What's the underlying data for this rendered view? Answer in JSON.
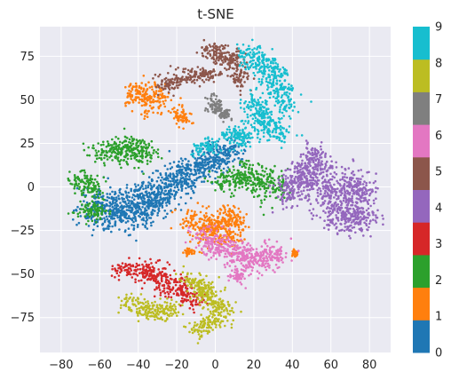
{
  "chart_data": {
    "type": "scatter",
    "title": "t-SNE",
    "xlabel": "",
    "ylabel": "",
    "xlim": [
      -91,
      91
    ],
    "ylim": [
      -95,
      92
    ],
    "x_ticks": [
      "−80",
      "−60",
      "−40",
      "−20",
      "0",
      "20",
      "40",
      "60",
      "80"
    ],
    "x_tick_values": [
      -80,
      -60,
      -40,
      -20,
      0,
      20,
      40,
      60,
      80
    ],
    "y_ticks": [
      "75",
      "50",
      "25",
      "0",
      "−25",
      "−50",
      "−75"
    ],
    "y_tick_values": [
      75,
      50,
      25,
      0,
      -25,
      -50,
      -75
    ],
    "grid": true,
    "background": "#eaeaf2",
    "colorbar": {
      "labels": [
        "0",
        "1",
        "2",
        "3",
        "4",
        "5",
        "6",
        "7",
        "8",
        "9"
      ],
      "colors": [
        "#1f77b4",
        "#ff7f0e",
        "#2ca02c",
        "#d62728",
        "#9467bd",
        "#8c564b",
        "#e377c2",
        "#7f7f7f",
        "#bcbd22",
        "#17becf"
      ]
    },
    "clusters": [
      {
        "label": "0",
        "color": "#1f77b4",
        "segments": [
          [
            -62,
            -12,
            -50,
            -15,
            14
          ],
          [
            -50,
            -15,
            -38,
            -10,
            13
          ],
          [
            -38,
            -10,
            -28,
            -4,
            12
          ],
          [
            -28,
            -4,
            -15,
            8,
            11
          ],
          [
            -15,
            8,
            0,
            16,
            10
          ],
          [
            0,
            16,
            10,
            22,
            9
          ]
        ]
      },
      {
        "label": "1",
        "color": "#ff7f0e",
        "segments": [
          [
            -44,
            52,
            -35,
            55,
            7
          ],
          [
            -36,
            45,
            -28,
            56,
            7
          ],
          [
            -20,
            44,
            -16,
            37,
            5
          ],
          [
            -14,
            -18,
            -2,
            -27,
            9
          ],
          [
            -2,
            -20,
            10,
            -30,
            9
          ],
          [
            5,
            -12,
            12,
            -22,
            6
          ],
          [
            40,
            -38,
            42,
            -38,
            2
          ],
          [
            -15,
            -37,
            -12,
            -37,
            2
          ]
        ]
      },
      {
        "label": "2",
        "color": "#2ca02c",
        "segments": [
          [
            -60,
            20,
            -43,
            22,
            9
          ],
          [
            -43,
            22,
            -35,
            20,
            9
          ],
          [
            -71,
            5,
            -63,
            -2,
            8
          ],
          [
            -68,
            -13,
            -60,
            -15,
            7
          ],
          [
            1,
            2,
            18,
            6,
            8
          ],
          [
            18,
            6,
            34,
            -2,
            10
          ]
        ]
      },
      {
        "label": "3",
        "color": "#d62728",
        "segments": [
          [
            -50,
            -48,
            -35,
            -48,
            6
          ],
          [
            -35,
            -48,
            -22,
            -58,
            8
          ],
          [
            -22,
            -58,
            -8,
            -65,
            7
          ]
        ]
      },
      {
        "label": "4",
        "color": "#9467bd",
        "segments": [
          [
            36,
            -5,
            46,
            4,
            10
          ],
          [
            46,
            4,
            53,
            20,
            9
          ],
          [
            53,
            10,
            66,
            -18,
            12
          ],
          [
            66,
            -18,
            80,
            -18,
            10
          ],
          [
            68,
            5,
            78,
            -8,
            10
          ]
        ]
      },
      {
        "label": "5",
        "color": "#8c564b",
        "segments": [
          [
            -30,
            58,
            -10,
            64,
            6
          ],
          [
            -10,
            64,
            0,
            66,
            5
          ],
          [
            -5,
            78,
            8,
            75,
            7
          ],
          [
            8,
            75,
            14,
            60,
            7
          ]
        ]
      },
      {
        "label": "6",
        "color": "#e377c2",
        "segments": [
          [
            -8,
            -29,
            8,
            -38,
            9
          ],
          [
            8,
            -38,
            20,
            -42,
            10
          ],
          [
            20,
            -42,
            35,
            -38,
            8
          ],
          [
            10,
            -50,
            14,
            -52,
            4
          ]
        ]
      },
      {
        "label": "7",
        "color": "#7f7f7f",
        "segments": [
          [
            -3,
            51,
            2,
            44,
            5
          ],
          [
            2,
            44,
            6,
            41,
            4
          ]
        ]
      },
      {
        "label": "8",
        "color": "#bcbd22",
        "segments": [
          [
            -47,
            -66,
            -32,
            -72,
            6
          ],
          [
            -32,
            -72,
            -20,
            -70,
            6
          ],
          [
            -13,
            -52,
            -5,
            -60,
            7
          ],
          [
            -5,
            -60,
            5,
            -75,
            8
          ],
          [
            -12,
            -82,
            0,
            -78,
            6
          ]
        ]
      },
      {
        "label": "9",
        "color": "#17becf",
        "segments": [
          [
            15,
            78,
            28,
            68,
            8
          ],
          [
            28,
            68,
            38,
            46,
            9
          ],
          [
            20,
            38,
            35,
            30,
            8
          ],
          [
            6,
            30,
            18,
            28,
            7
          ],
          [
            -10,
            22,
            0,
            24,
            5
          ],
          [
            18,
            50,
            26,
            40,
            7
          ]
        ]
      }
    ]
  }
}
